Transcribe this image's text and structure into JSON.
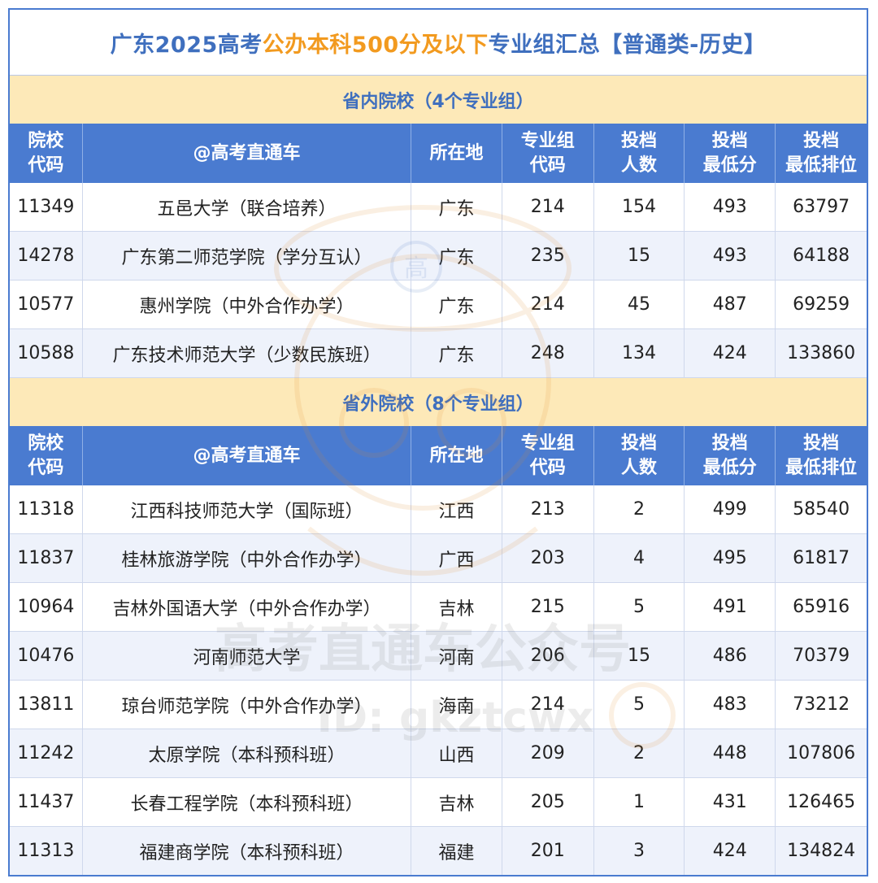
{
  "title": {
    "part1": "广东2025高考",
    "part2": "公办本科500分及以下",
    "part3": "专业组汇总【普通类-历史】"
  },
  "colors": {
    "blue": "#4a7bd0",
    "title_blue": "#3f6fbe",
    "orange": "#f29a1f",
    "section_bg": "#fde9b8",
    "row_alt": "#eef2fb"
  },
  "columns": [
    "院校\n代码",
    "@高考直通车",
    "所在地",
    "专业组\n代码",
    "投档\n人数",
    "投档\n最低分",
    "投档\n最低排位"
  ],
  "sections": [
    {
      "label": "省内院校（4个专业组）",
      "rows": [
        [
          "11349",
          "五邑大学（联合培养）",
          "广东",
          "214",
          "154",
          "493",
          "63797"
        ],
        [
          "14278",
          "广东第二师范学院（学分互认）",
          "广东",
          "235",
          "15",
          "493",
          "64188"
        ],
        [
          "10577",
          "惠州学院（中外合作办学）",
          "广东",
          "214",
          "45",
          "487",
          "69259"
        ],
        [
          "10588",
          "广东技术师范大学（少数民族班）",
          "广东",
          "248",
          "134",
          "424",
          "133860"
        ]
      ]
    },
    {
      "label": "省外院校（8个专业组）",
      "rows": [
        [
          "11318",
          "江西科技师范大学（国际班）",
          "江西",
          "213",
          "2",
          "499",
          "58540"
        ],
        [
          "11837",
          "桂林旅游学院（中外合作办学）",
          "广西",
          "203",
          "4",
          "495",
          "61817"
        ],
        [
          "10964",
          "吉林外国语大学（中外合作办学）",
          "吉林",
          "215",
          "5",
          "491",
          "65916"
        ],
        [
          "10476",
          "河南师范大学",
          "河南",
          "206",
          "15",
          "486",
          "70379"
        ],
        [
          "13811",
          "琼台师范学院（中外合作办学）",
          "海南",
          "214",
          "5",
          "483",
          "73212"
        ],
        [
          "11242",
          "太原学院（本科预科班）",
          "山西",
          "209",
          "2",
          "448",
          "107806"
        ],
        [
          "11437",
          "长春工程学院（本科预科班）",
          "吉林",
          "205",
          "1",
          "431",
          "126465"
        ],
        [
          "11313",
          "福建商学院（本科预科班）",
          "福建",
          "201",
          "3",
          "424",
          "134824"
        ]
      ]
    }
  ],
  "watermark": {
    "badge": "高",
    "line1": "高考直通车公众号",
    "line2": "ID: gkztcwx"
  }
}
